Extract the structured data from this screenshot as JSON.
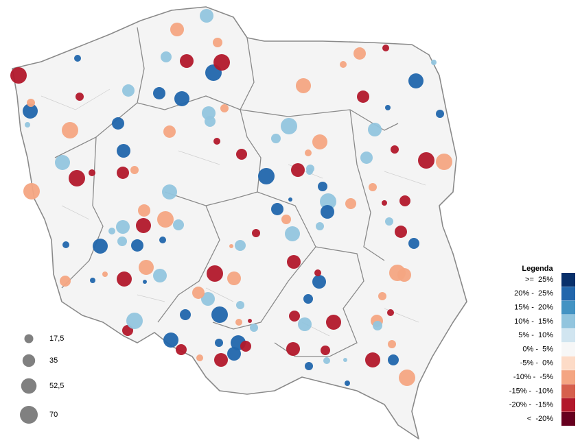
{
  "legend": {
    "title": "Legenda",
    "classes": [
      {
        "label": ">=  25%",
        "min": 25,
        "max": null,
        "color": "#08306b"
      },
      {
        "label": "20% -  25%",
        "min": 20,
        "max": 25,
        "color": "#2166ac"
      },
      {
        "label": "15% -  20%",
        "min": 15,
        "max": 20,
        "color": "#4393c3"
      },
      {
        "label": "10% -  15%",
        "min": 10,
        "max": 15,
        "color": "#92c5de"
      },
      {
        "label": "5% -  10%",
        "min": 5,
        "max": 10,
        "color": "#d1e5f0"
      },
      {
        "label": "0% -  5%",
        "min": 0,
        "max": 5,
        "color": "#f7f7f7"
      },
      {
        "label": "-5% -  0%",
        "min": -5,
        "max": 0,
        "color": "#fddbc7"
      },
      {
        "label": "-10% -  -5%",
        "min": -10,
        "max": -5,
        "color": "#f4a582"
      },
      {
        "label": "-15% -  -10%",
        "min": -15,
        "max": -10,
        "color": "#d6604d"
      },
      {
        "label": "-20% -  -15%",
        "min": -20,
        "max": -15,
        "color": "#b2182b"
      },
      {
        "label": "<  -20%",
        "min": null,
        "max": -20,
        "color": "#67001f"
      }
    ]
  },
  "size_legend": {
    "items": [
      {
        "value": 17.5,
        "label": "17,5"
      },
      {
        "value": 35,
        "label": "35"
      },
      {
        "value": 52.5,
        "label": "52,5"
      },
      {
        "value": 70,
        "label": "70"
      }
    ]
  },
  "points": [
    {
      "size": 59.6,
      "change": -17
    },
    {
      "size": 50.1,
      "change": 22
    },
    {
      "size": 14.9,
      "change": -7
    },
    {
      "size": 6.6,
      "change": 12
    },
    {
      "size": 10.4,
      "change": 22
    },
    {
      "size": 14.9,
      "change": -17
    },
    {
      "size": 59.6,
      "change": -7
    },
    {
      "size": 50.1,
      "change": 12
    },
    {
      "size": 59.6,
      "change": -17
    },
    {
      "size": 10.4,
      "change": -17
    },
    {
      "size": 59.6,
      "change": -7
    },
    {
      "size": 10.4,
      "change": 22
    },
    {
      "size": 26.5,
      "change": -7
    },
    {
      "size": 6.6,
      "change": 22
    },
    {
      "size": 50.1,
      "change": 22
    },
    {
      "size": 6.6,
      "change": -7
    },
    {
      "size": 50.1,
      "change": -17
    },
    {
      "size": 3.7,
      "change": 22
    },
    {
      "size": 41.4,
      "change": 12
    },
    {
      "size": 50.1,
      "change": -7
    },
    {
      "size": 41.4,
      "change": 12
    },
    {
      "size": 10.4,
      "change": 12
    },
    {
      "size": 20.3,
      "change": 12
    },
    {
      "size": 33.5,
      "change": 22
    },
    {
      "size": 10.4,
      "change": 22
    },
    {
      "size": 50.1,
      "change": -17
    },
    {
      "size": 33.5,
      "change": -7
    },
    {
      "size": 59.6,
      "change": -7
    },
    {
      "size": 26.5,
      "change": 12
    },
    {
      "size": 50.1,
      "change": 12
    },
    {
      "size": 33.5,
      "change": -17
    },
    {
      "size": 14.9,
      "change": -7
    },
    {
      "size": 41.4,
      "change": 22
    },
    {
      "size": 33.5,
      "change": 22
    },
    {
      "size": 33.5,
      "change": 12
    },
    {
      "size": 33.5,
      "change": 22
    },
    {
      "size": 50.1,
      "change": 22
    },
    {
      "size": 26.5,
      "change": 12
    },
    {
      "size": 41.4,
      "change": -7
    },
    {
      "size": 41.4,
      "change": -17
    },
    {
      "size": 41.4,
      "change": 12
    },
    {
      "size": 20.3,
      "change": -7
    },
    {
      "size": 59.6,
      "change": 22
    },
    {
      "size": 59.6,
      "change": -17
    },
    {
      "size": 14.9,
      "change": -7
    },
    {
      "size": 41.4,
      "change": 12
    },
    {
      "size": 26.5,
      "change": 12
    },
    {
      "size": 33.5,
      "change": -7
    },
    {
      "size": 10.4,
      "change": -17
    },
    {
      "size": 26.5,
      "change": -17
    },
    {
      "size": 59.6,
      "change": 22
    },
    {
      "size": 59.6,
      "change": 12
    },
    {
      "size": 20.3,
      "change": 12
    },
    {
      "size": 50.1,
      "change": -7
    },
    {
      "size": 41.4,
      "change": -17
    },
    {
      "size": 14.9,
      "change": 12
    },
    {
      "size": 50.1,
      "change": -7
    },
    {
      "size": 33.5,
      "change": -7
    },
    {
      "size": 10.4,
      "change": -7
    },
    {
      "size": 10.4,
      "change": -17
    },
    {
      "size": 33.5,
      "change": -17
    },
    {
      "size": 6.6,
      "change": 22
    },
    {
      "size": 50.1,
      "change": 22
    },
    {
      "size": 6.6,
      "change": 12
    },
    {
      "size": 14.9,
      "change": 22
    },
    {
      "size": 41.4,
      "change": 12
    },
    {
      "size": 14.9,
      "change": -17
    },
    {
      "size": 33.5,
      "change": 12
    },
    {
      "size": 59.6,
      "change": -17
    },
    {
      "size": 59.6,
      "change": -7
    },
    {
      "size": 14.9,
      "change": -7
    },
    {
      "size": 6.6,
      "change": -17
    },
    {
      "size": 26.5,
      "change": -17
    },
    {
      "size": 26.5,
      "change": -7
    },
    {
      "size": 59.6,
      "change": 12
    },
    {
      "size": 41.4,
      "change": 22
    },
    {
      "size": 20.3,
      "change": 22
    },
    {
      "size": 10.4,
      "change": 12
    },
    {
      "size": 10.4,
      "change": -7
    },
    {
      "size": 33.5,
      "change": 22
    },
    {
      "size": 3.7,
      "change": 22
    },
    {
      "size": 20.3,
      "change": -7
    },
    {
      "size": 50.1,
      "change": 12
    },
    {
      "size": 14.9,
      "change": 12
    },
    {
      "size": 14.9,
      "change": -17
    },
    {
      "size": 3.7,
      "change": -7
    },
    {
      "size": 26.5,
      "change": 12
    },
    {
      "size": 59.6,
      "change": -17
    },
    {
      "size": 41.4,
      "change": -7
    },
    {
      "size": 41.4,
      "change": -17
    },
    {
      "size": 41.4,
      "change": 22
    },
    {
      "size": 10.4,
      "change": -17
    },
    {
      "size": 20.3,
      "change": 22
    },
    {
      "size": 26.5,
      "change": -17
    },
    {
      "size": 41.4,
      "change": 12
    },
    {
      "size": 50.1,
      "change": -17
    },
    {
      "size": 14.9,
      "change": 12
    },
    {
      "size": 33.5,
      "change": -17
    },
    {
      "size": 26.5,
      "change": 22
    },
    {
      "size": 59.6,
      "change": -7
    },
    {
      "size": 41.4,
      "change": -7
    },
    {
      "size": 14.9,
      "change": -7
    },
    {
      "size": 10.4,
      "change": -17
    },
    {
      "size": 33.5,
      "change": -7
    },
    {
      "size": 20.3,
      "change": 12
    },
    {
      "size": 14.9,
      "change": -7
    },
    {
      "size": 26.5,
      "change": 22
    },
    {
      "size": 59.6,
      "change": -7
    },
    {
      "size": 50.1,
      "change": -17
    },
    {
      "size": 6.6,
      "change": 22
    },
    {
      "size": 3.7,
      "change": 12
    },
    {
      "size": 10.4,
      "change": 12
    },
    {
      "size": 20.3,
      "change": -17
    },
    {
      "size": 14.9,
      "change": 22
    },
    {
      "size": 41.4,
      "change": -17
    },
    {
      "size": 14.9,
      "change": 12
    },
    {
      "size": 3.7,
      "change": -17
    },
    {
      "size": 14.9,
      "change": 12
    },
    {
      "size": 59.6,
      "change": 22
    },
    {
      "size": 41.4,
      "change": 12
    },
    {
      "size": 33.5,
      "change": -7
    },
    {
      "size": 26.5,
      "change": 22
    },
    {
      "size": 50.1,
      "change": 22
    },
    {
      "size": 26.5,
      "change": -17
    },
    {
      "size": 10.4,
      "change": -7
    },
    {
      "size": 41.4,
      "change": -17
    },
    {
      "size": 41.4,
      "change": 22
    },
    {
      "size": 50.1,
      "change": 22
    },
    {
      "size": 14.9,
      "change": 22
    },
    {
      "size": 26.5,
      "change": -17
    },
    {
      "size": 10.4,
      "change": -7
    },
    {
      "size": 26.5,
      "change": -17
    },
    {
      "size": 59.6,
      "change": 12
    }
  ]
}
